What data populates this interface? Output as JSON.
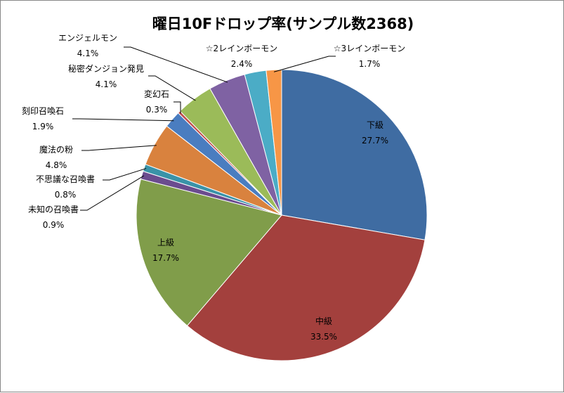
{
  "chart_data": {
    "type": "pie",
    "title": "曜日10Fドロップ率(サンプル数2368)",
    "slices": [
      {
        "name": "下級",
        "value": 27.7,
        "label": "27.7%",
        "color": "#3F6CA2"
      },
      {
        "name": "中級",
        "value": 33.5,
        "label": "33.5%",
        "color": "#A3403D"
      },
      {
        "name": "上級",
        "value": 17.7,
        "label": "17.7%",
        "color": "#809D4A"
      },
      {
        "name": "未知の召喚書",
        "value": 0.9,
        "label": "0.9%",
        "color": "#6B4C8F"
      },
      {
        "name": "不思議な召喚書",
        "value": 0.8,
        "label": "0.8%",
        "color": "#3A93A8"
      },
      {
        "name": "魔法の粉",
        "value": 4.8,
        "label": "4.8%",
        "color": "#D9823E"
      },
      {
        "name": "刻印召喚石",
        "value": 1.9,
        "label": "1.9%",
        "color": "#4A7DC0"
      },
      {
        "name": "変幻石",
        "value": 0.3,
        "label": "0.3%",
        "color": "#C0504D"
      },
      {
        "name": "秘密ダンジョン発見",
        "value": 4.1,
        "label": "4.1%",
        "color": "#9BBB59"
      },
      {
        "name": "エンジェルモン",
        "value": 4.1,
        "label": "4.1%",
        "color": "#7F62A3"
      },
      {
        "name": "☆2レインボーモン",
        "value": 2.4,
        "label": "2.4%",
        "color": "#4BACC6"
      },
      {
        "name": "☆3レインボーモン",
        "value": 1.7,
        "label": "1.7%",
        "color": "#F79646"
      }
    ],
    "legend": "none"
  }
}
